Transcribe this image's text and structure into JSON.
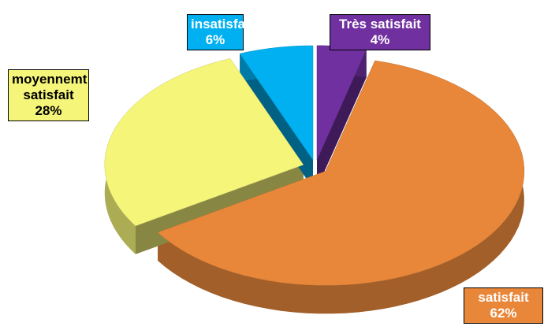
{
  "chart_data": {
    "type": "pie",
    "categories": [
      "Très satisfait",
      "satisfait",
      "moyennemt satisfait",
      "insatisfait"
    ],
    "values": [
      4,
      62,
      28,
      6
    ],
    "value_labels": [
      "4%",
      "62%",
      "28%",
      "6%"
    ],
    "colors": [
      "#7030a0",
      "#e8873a",
      "#f5f57a",
      "#00b0f0"
    ]
  }
}
